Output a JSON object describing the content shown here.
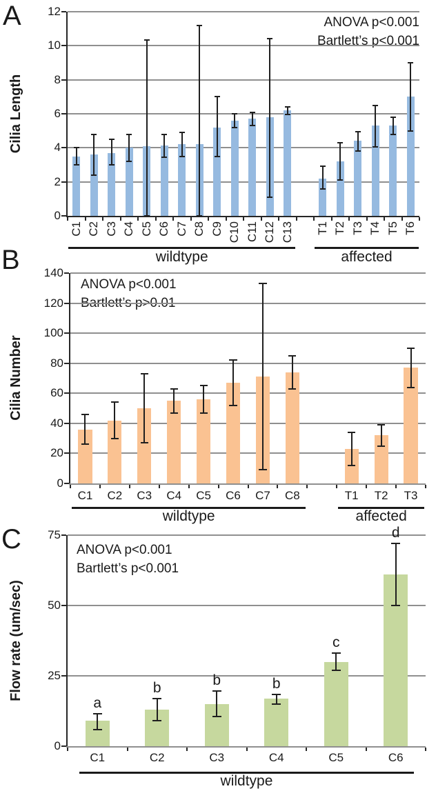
{
  "figure": {
    "background": "#ffffff",
    "grid_color": "#8f8f8f",
    "axis_color": "#262626",
    "error_bar_color": "#1f1f1f"
  },
  "chart_data": [
    {
      "type": "bar",
      "panel": "A",
      "title": "",
      "xlabel": "",
      "ylabel": "Cilia Length",
      "ylim": [
        0,
        12
      ],
      "yticks": [
        0,
        2,
        4,
        6,
        8,
        10,
        12
      ],
      "grid": true,
      "legend": "none",
      "bar_color": "#96bae0",
      "annotations": [
        "ANOVA p<0.001",
        "Bartlett’s p<0.001"
      ],
      "annotation_position": "top-right",
      "x_tick_rotation": 90,
      "groups": [
        {
          "name": "wildtype",
          "categories": [
            "C1",
            "C2",
            "C3",
            "C4",
            "C5",
            "C6",
            "C7",
            "C8",
            "C9",
            "C10",
            "C11",
            "C12",
            "C13"
          ],
          "values": [
            3.5,
            3.6,
            3.7,
            4.0,
            4.1,
            4.15,
            4.2,
            4.2,
            5.2,
            5.6,
            5.7,
            5.8,
            6.2
          ],
          "err_low": [
            3.0,
            2.4,
            3.0,
            3.2,
            0,
            3.45,
            3.5,
            0,
            3.5,
            5.2,
            5.3,
            1.1,
            5.95
          ],
          "err_high": [
            4.0,
            4.8,
            4.5,
            4.8,
            10.35,
            4.8,
            4.9,
            11.2,
            7.0,
            6.0,
            6.1,
            10.4,
            6.4
          ]
        },
        {
          "name": "affected",
          "categories": [
            "T1",
            "T2",
            "T3",
            "T4",
            "T5",
            "T6"
          ],
          "values": [
            2.2,
            3.2,
            4.4,
            5.3,
            5.3,
            7.0
          ],
          "err_low": [
            1.6,
            2.1,
            3.8,
            4.05,
            4.8,
            5.0
          ],
          "err_high": [
            2.9,
            4.3,
            4.95,
            6.5,
            5.8,
            9.0
          ]
        }
      ]
    },
    {
      "type": "bar",
      "panel": "B",
      "title": "",
      "xlabel": "",
      "ylabel": "Cilia Number",
      "ylim": [
        0,
        140
      ],
      "yticks": [
        0,
        20,
        40,
        60,
        80,
        100,
        120,
        140
      ],
      "grid": true,
      "legend": "none",
      "bar_color": "#fac292",
      "annotations": [
        "ANOVA p<0.001",
        "Bartlett’s p>0.01"
      ],
      "annotation_position": "top-left",
      "x_tick_rotation": 0,
      "groups": [
        {
          "name": "wildtype",
          "categories": [
            "C1",
            "C2",
            "C3",
            "C4",
            "C5",
            "C6",
            "C7",
            "C8"
          ],
          "values": [
            36,
            42,
            50,
            55,
            56,
            67,
            71,
            74
          ],
          "err_low": [
            26,
            30,
            27,
            47,
            47,
            52,
            9,
            63
          ],
          "err_high": [
            46,
            54,
            73,
            63,
            65,
            82,
            133,
            85
          ]
        },
        {
          "name": "affected",
          "categories": [
            "T1",
            "T2",
            "T3"
          ],
          "values": [
            23,
            32,
            77
          ],
          "err_low": [
            12,
            25,
            64
          ],
          "err_high": [
            34,
            39,
            90
          ]
        }
      ]
    },
    {
      "type": "bar",
      "panel": "C",
      "title": "",
      "xlabel": "",
      "ylabel": "Flow rate (um/sec)",
      "ylim": [
        0,
        75
      ],
      "yticks": [
        0,
        25,
        50,
        75
      ],
      "grid": true,
      "legend": "none",
      "bar_color": "#c6d89e",
      "annotations": [
        "ANOVA p<0.001",
        "Bartlett’s p<0.001"
      ],
      "annotation_position": "top-left",
      "x_tick_rotation": 0,
      "groups": [
        {
          "name": "wildtype",
          "categories": [
            "C1",
            "C2",
            "C3",
            "C4",
            "C5",
            "C6"
          ],
          "values": [
            9,
            13,
            15,
            17,
            30,
            61
          ],
          "err_low": [
            6,
            9,
            10.5,
            15,
            27,
            50
          ],
          "err_high": [
            11.5,
            17,
            19.5,
            18.5,
            33,
            72
          ],
          "letters": [
            "a",
            "b",
            "b",
            "b",
            "c",
            "d"
          ]
        }
      ]
    }
  ]
}
